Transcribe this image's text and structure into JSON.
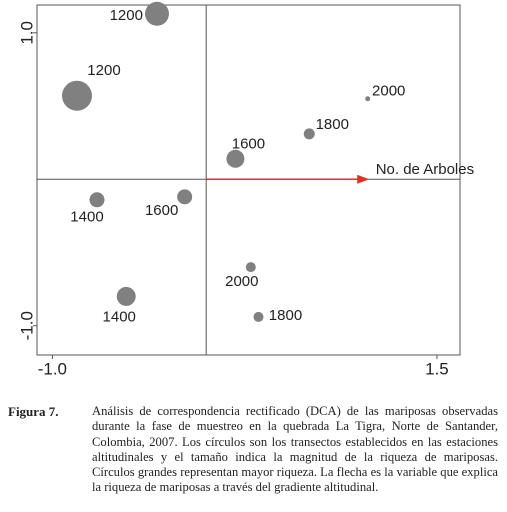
{
  "chart_data": {
    "type": "scatter",
    "x": [
      -0.32,
      -0.84,
      0.19,
      0.67,
      1.05,
      -0.71,
      -0.14,
      0.29,
      -0.52,
      0.34
    ],
    "values": [
      1.13,
      0.57,
      0.14,
      0.31,
      0.55,
      -0.14,
      -0.12,
      -0.6,
      -0.8,
      -0.94
    ],
    "sizes": [
      24,
      30,
      18,
      11,
      5,
      15,
      15,
      10,
      19,
      10
    ],
    "point_labels": [
      "1200",
      "1200",
      "1600",
      "1800",
      "2000",
      "1400",
      "1600",
      "2000",
      "1400",
      "1800"
    ],
    "color": "#808080",
    "xlim": [
      -1.1,
      1.65
    ],
    "ylim": [
      -1.2,
      1.19
    ],
    "xticks": [
      {
        "value": -1,
        "label": "-1.0"
      },
      {
        "value": 1.5,
        "label": "1.5"
      }
    ],
    "yticks": [
      {
        "value": -1,
        "label": "-1.0"
      },
      {
        "value": 1,
        "label": "1.0"
      }
    ],
    "arrow": {
      "label": "No. de Arboles",
      "x": 1.05,
      "y": 0,
      "color": "#e03020"
    }
  },
  "caption": {
    "label": "Figura 7.",
    "text": "Análisis de correspondencia rectificado (DCA) de las mariposas observadas durante la fase de muestreo en la quebrada La Tigra, Norte de Santander, Colombia, 2007. Los círculos son los transectos establecidos en las estaciones altitudinales y el tamaño indica la magnitud de la riqueza de mariposas. Círculos grandes representan mayor riqueza. La flecha es la variable que explica la riqueza de mariposas a través del gradiente altitudinal."
  }
}
